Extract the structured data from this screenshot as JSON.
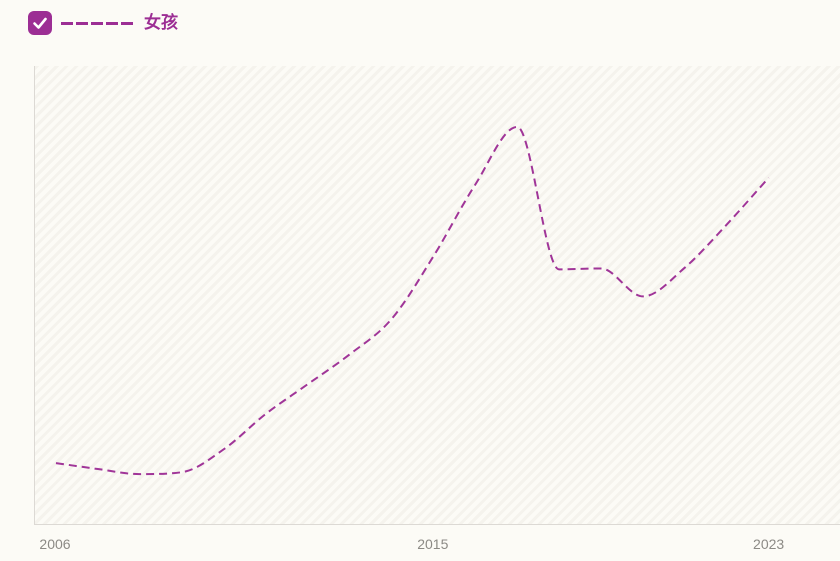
{
  "legend": {
    "label": "女孩",
    "checked": true,
    "color": "#9c2e94"
  },
  "theme": {
    "accent": "#9c2e94",
    "line_color": "#a03598",
    "axis_color": "#dcd9d4",
    "tick_text_color": "#8c8a85",
    "page_background": "#fcfbf6"
  },
  "chart_data": {
    "type": "line",
    "title": "",
    "xlabel": "",
    "ylabel": "",
    "legend_position": "top-left",
    "grid": false,
    "plot_background": "hatched",
    "line_style": "dashed",
    "xlim": [
      2005.5,
      2024.7
    ],
    "ylim": [
      0,
      100
    ],
    "x_ticks": [
      2006,
      2015,
      2023
    ],
    "series": [
      {
        "name": "女孩",
        "color": "#a03598",
        "style": "dashed",
        "x": [
          2006,
          2007,
          2008,
          2009,
          2010,
          2011,
          2012,
          2013,
          2014,
          2015,
          2016,
          2017,
          2018,
          2019,
          2020,
          2021,
          2022,
          2023
        ],
        "values": [
          13.3,
          12.0,
          10.9,
          11.3,
          16.3,
          24.0,
          30.5,
          37.0,
          44.7,
          58.4,
          74.1,
          86.7,
          55.6,
          55.8,
          49.7,
          56.0,
          65.4,
          75.6
        ]
      }
    ]
  }
}
